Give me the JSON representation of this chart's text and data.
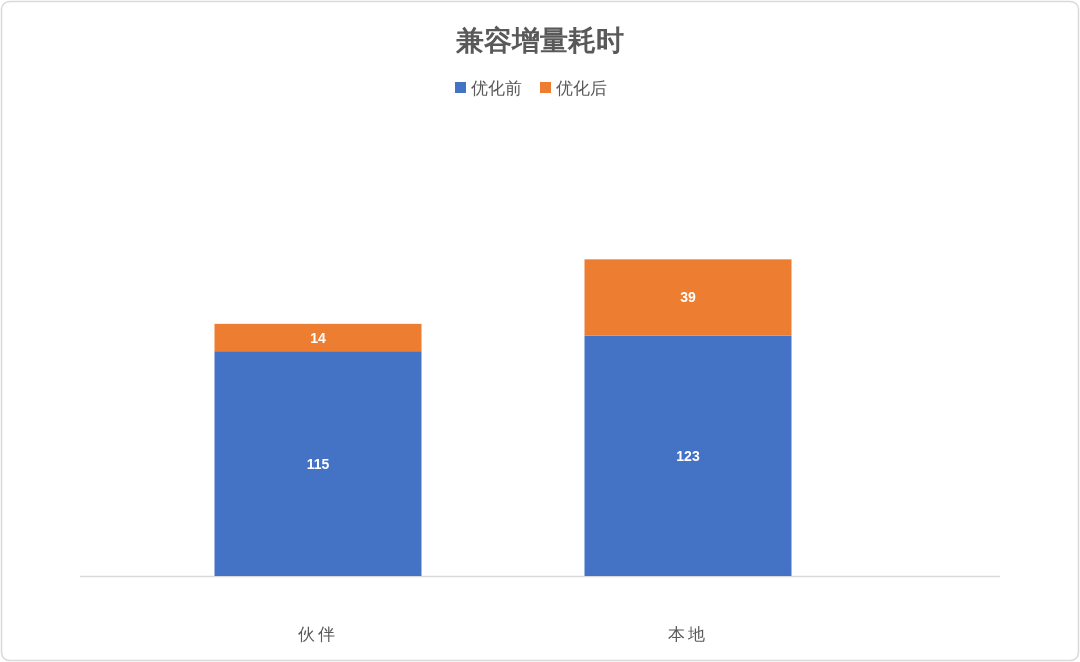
{
  "chart_data": {
    "type": "bar",
    "title": "兼容增量耗时",
    "categories": [
      "伙伴",
      "本地"
    ],
    "series": [
      {
        "name": "优化前",
        "color": "#4472c4",
        "values": [
          115,
          123
        ]
      },
      {
        "name": "优化后",
        "color": "#ed7d31",
        "values": [
          14,
          39
        ]
      }
    ],
    "stacked": true,
    "data_labels": true,
    "legend": "top"
  }
}
